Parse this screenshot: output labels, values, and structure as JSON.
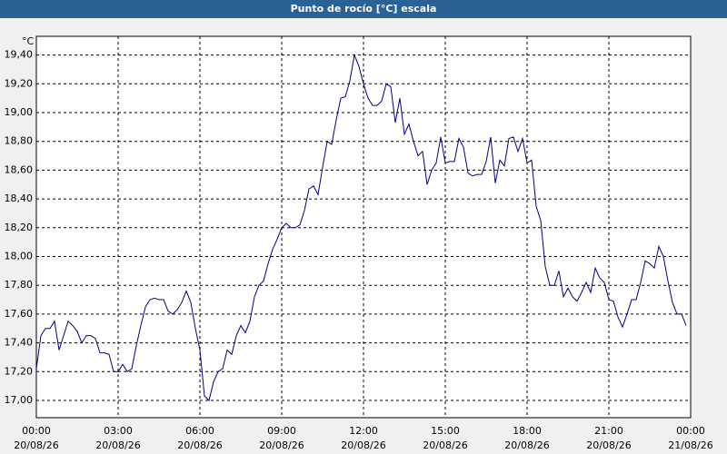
{
  "chart_data": {
    "type": "line",
    "title": "Punto de rocío [°C] escala",
    "y_unit": "°C",
    "x": [
      0,
      10,
      20,
      30,
      40,
      50,
      60,
      70,
      80,
      90,
      100,
      110,
      120,
      130,
      140,
      150,
      160,
      170,
      180,
      190,
      200,
      210,
      220,
      230,
      240,
      250,
      260,
      270,
      280,
      290,
      300,
      310,
      320,
      330,
      340,
      350,
      360,
      370,
      380,
      390,
      400,
      410,
      420,
      430,
      440,
      450,
      460,
      470,
      480,
      490,
      500,
      510,
      520,
      530,
      540,
      550,
      560,
      570,
      580,
      590,
      600,
      610,
      620,
      630,
      640,
      650,
      660,
      670,
      680,
      690,
      700,
      710,
      720,
      730,
      740,
      750,
      760,
      770,
      780,
      790,
      800,
      810,
      820,
      830,
      840,
      850,
      860,
      870,
      880,
      890,
      900,
      910,
      920,
      930,
      940,
      950,
      960,
      970,
      980,
      990,
      1000,
      1010,
      1020,
      1030,
      1040,
      1050,
      1060,
      1070,
      1080,
      1090,
      1100,
      1110,
      1120,
      1130,
      1140,
      1150,
      1160,
      1170,
      1180,
      1190,
      1200,
      1210,
      1220,
      1230,
      1240,
      1250,
      1260,
      1270,
      1280,
      1290,
      1300,
      1310,
      1320,
      1330,
      1340,
      1350,
      1360,
      1370,
      1380,
      1390,
      1400,
      1410,
      1420,
      1430
    ],
    "series": [
      {
        "name": "Punto de rocío",
        "color": "#000080",
        "values": [
          17.22,
          17.45,
          17.5,
          17.5,
          17.55,
          17.35,
          17.45,
          17.55,
          17.52,
          17.48,
          17.4,
          17.45,
          17.45,
          17.43,
          17.33,
          17.33,
          17.32,
          17.2,
          17.2,
          17.25,
          17.2,
          17.22,
          17.38,
          17.52,
          17.65,
          17.7,
          17.71,
          17.7,
          17.7,
          17.62,
          17.6,
          17.63,
          17.68,
          17.76,
          17.68,
          17.5,
          17.35,
          17.03,
          17.0,
          17.13,
          17.2,
          17.22,
          17.35,
          17.32,
          17.45,
          17.52,
          17.47,
          17.55,
          17.72,
          17.8,
          17.83,
          17.95,
          18.05,
          18.12,
          18.2,
          18.23,
          18.2,
          18.2,
          18.22,
          18.32,
          18.47,
          18.49,
          18.43,
          18.62,
          18.8,
          18.78,
          18.95,
          19.1,
          19.11,
          19.22,
          19.4,
          19.32,
          19.2,
          19.1,
          19.05,
          19.05,
          19.08,
          19.2,
          19.18,
          18.93,
          19.1,
          18.85,
          18.92,
          18.8,
          18.7,
          18.73,
          18.5,
          18.6,
          18.65,
          18.83,
          18.65,
          18.66,
          18.66,
          18.82,
          18.76,
          18.58,
          18.56,
          18.57,
          18.57,
          18.66,
          18.83,
          18.51,
          18.67,
          18.63,
          18.82,
          18.83,
          18.73,
          18.82,
          18.65,
          18.67,
          18.35,
          18.25,
          17.93,
          17.8,
          17.8,
          17.9,
          17.72,
          17.78,
          17.72,
          17.69,
          17.75,
          17.82,
          17.75,
          17.92,
          17.85,
          17.82,
          17.7,
          17.69,
          17.58,
          17.51,
          17.6,
          17.7,
          17.7,
          17.82,
          17.97,
          17.95,
          17.92,
          18.07,
          18.0,
          17.83,
          17.68,
          17.6,
          17.6,
          17.52
        ]
      }
    ],
    "xlim": [
      0,
      1440
    ],
    "xticks": [
      {
        "value": 0,
        "label": "00:00",
        "date": "20/08/26"
      },
      {
        "value": 180,
        "label": "03:00",
        "date": "20/08/26"
      },
      {
        "value": 360,
        "label": "06:00",
        "date": "20/08/26"
      },
      {
        "value": 540,
        "label": "09:00",
        "date": "20/08/26"
      },
      {
        "value": 720,
        "label": "12:00",
        "date": "20/08/26"
      },
      {
        "value": 900,
        "label": "15:00",
        "date": "20/08/26"
      },
      {
        "value": 1080,
        "label": "18:00",
        "date": "20/08/26"
      },
      {
        "value": 1260,
        "label": "21:00",
        "date": "20/08/26"
      },
      {
        "value": 1440,
        "label": "00:00",
        "date": "21/08/26"
      }
    ],
    "ylim": [
      16.88,
      19.53
    ],
    "yticks": [
      {
        "value": 17.0,
        "label": "17,00"
      },
      {
        "value": 17.2,
        "label": "17,20"
      },
      {
        "value": 17.4,
        "label": "17,40"
      },
      {
        "value": 17.6,
        "label": "17,60"
      },
      {
        "value": 17.8,
        "label": "17,80"
      },
      {
        "value": 18.0,
        "label": "18,00"
      },
      {
        "value": 18.2,
        "label": "18,20"
      },
      {
        "value": 18.4,
        "label": "18,40"
      },
      {
        "value": 18.6,
        "label": "18,60"
      },
      {
        "value": 18.8,
        "label": "18,80"
      },
      {
        "value": 19.0,
        "label": "19,00"
      },
      {
        "value": 19.2,
        "label": "19,20"
      },
      {
        "value": 19.4,
        "label": "19,40"
      }
    ],
    "grid": true
  }
}
